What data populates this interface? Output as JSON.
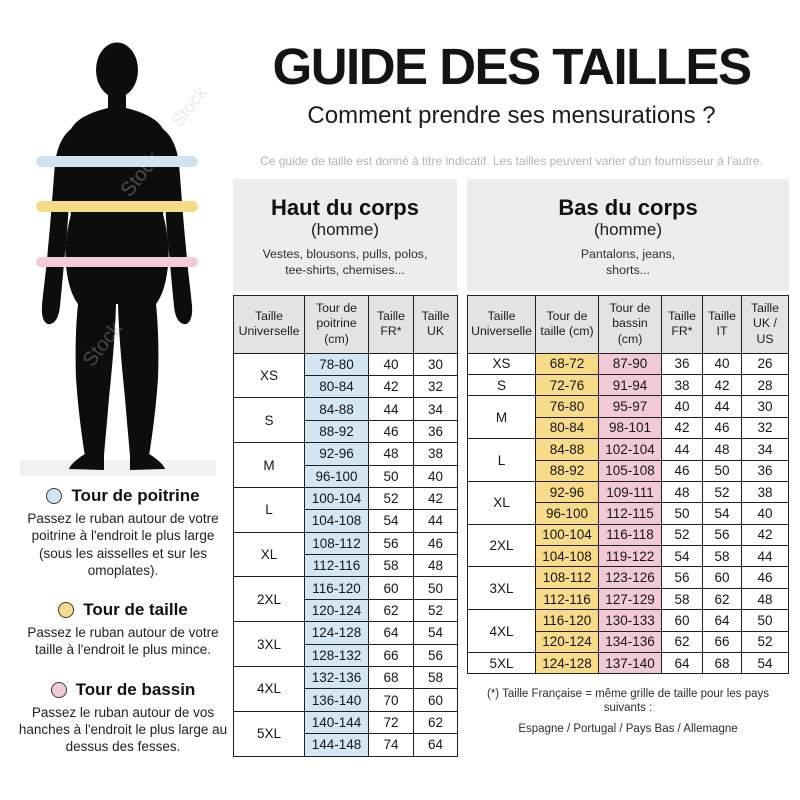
{
  "header": {
    "title": "GUIDE DES TAILLES",
    "subtitle": "Comment prendre ses mensurations ?",
    "disclaimer": "Ce guide de taille est donné à titre indicatif. Les tailles peuvent varier d'un fournisseur à l'autre."
  },
  "figure": {
    "watermark": "Stock",
    "silhouette_color": "#0d0d0d",
    "measurements": [
      {
        "id": "poitrine",
        "label": "Tour de poitrine",
        "color": "#d4e6f1",
        "band_color": "#cfe4f0",
        "description": "Passez le ruban autour de votre poitrine à l'endroit le plus large (sous les aisselles et sur les omoplates)."
      },
      {
        "id": "taille",
        "label": "Tour de taille",
        "color": "#f7db88",
        "band_color": "#f6db87",
        "description": "Passez le ruban autour de votre taille à l'endroit le plus mince."
      },
      {
        "id": "bassin",
        "label": "Tour de bassin",
        "color": "#f1cad5",
        "band_color": "#f1cbd6",
        "description": "Passez le ruban autour de vos hanches à l'endroit le plus large au dessus des fesses."
      }
    ]
  },
  "tables": {
    "haut": {
      "title": "Haut du corps",
      "subtitle": "(homme)",
      "items": "Vestes, blousons, pulls, polos,\ntee-shirts, chemises...",
      "columns": [
        "Taille Universelle",
        "Tour de poitrine (cm)",
        "Taille FR*",
        "Taille UK"
      ],
      "rows": [
        {
          "size": "XS",
          "data": [
            [
              "78-80",
              "40",
              "30"
            ],
            [
              "80-84",
              "42",
              "32"
            ]
          ]
        },
        {
          "size": "S",
          "data": [
            [
              "84-88",
              "44",
              "34"
            ],
            [
              "88-92",
              "46",
              "36"
            ]
          ]
        },
        {
          "size": "M",
          "data": [
            [
              "92-96",
              "48",
              "38"
            ],
            [
              "96-100",
              "50",
              "40"
            ]
          ]
        },
        {
          "size": "L",
          "data": [
            [
              "100-104",
              "52",
              "42"
            ],
            [
              "104-108",
              "54",
              "44"
            ]
          ]
        },
        {
          "size": "XL",
          "data": [
            [
              "108-112",
              "56",
              "46"
            ],
            [
              "112-116",
              "58",
              "48"
            ]
          ]
        },
        {
          "size": "2XL",
          "data": [
            [
              "116-120",
              "60",
              "50"
            ],
            [
              "120-124",
              "62",
              "52"
            ]
          ]
        },
        {
          "size": "3XL",
          "data": [
            [
              "124-128",
              "64",
              "54"
            ],
            [
              "128-132",
              "66",
              "56"
            ]
          ]
        },
        {
          "size": "4XL",
          "data": [
            [
              "132-136",
              "68",
              "58"
            ],
            [
              "136-140",
              "70",
              "60"
            ]
          ]
        },
        {
          "size": "5XL",
          "data": [
            [
              "140-144",
              "72",
              "62"
            ],
            [
              "144-148",
              "74",
              "64"
            ]
          ]
        }
      ]
    },
    "bas": {
      "title": "Bas du corps",
      "subtitle": "(homme)",
      "items": "Pantalons, jeans,\nshorts...",
      "columns": [
        "Taille Universelle",
        "Tour de taille (cm)",
        "Tour de bassin (cm)",
        "Taille FR*",
        "Taille IT",
        "Taille UK / US"
      ],
      "rows": [
        {
          "size": "XS",
          "data": [
            [
              "68-72",
              "87-90",
              "36",
              "40",
              "26"
            ]
          ]
        },
        {
          "size": "S",
          "data": [
            [
              "72-76",
              "91-94",
              "38",
              "42",
              "28"
            ]
          ]
        },
        {
          "size": "M",
          "data": [
            [
              "76-80",
              "95-97",
              "40",
              "44",
              "30"
            ],
            [
              "80-84",
              "98-101",
              "42",
              "46",
              "32"
            ]
          ]
        },
        {
          "size": "L",
          "data": [
            [
              "84-88",
              "102-104",
              "44",
              "48",
              "34"
            ],
            [
              "88-92",
              "105-108",
              "46",
              "50",
              "36"
            ]
          ]
        },
        {
          "size": "XL",
          "data": [
            [
              "92-96",
              "109-111",
              "48",
              "52",
              "38"
            ],
            [
              "96-100",
              "112-115",
              "50",
              "54",
              "40"
            ]
          ]
        },
        {
          "size": "2XL",
          "data": [
            [
              "100-104",
              "116-118",
              "52",
              "56",
              "42"
            ],
            [
              "104-108",
              "119-122",
              "54",
              "58",
              "44"
            ]
          ]
        },
        {
          "size": "3XL",
          "data": [
            [
              "108-112",
              "123-126",
              "56",
              "60",
              "46"
            ],
            [
              "112-116",
              "127-129",
              "58",
              "62",
              "48"
            ]
          ]
        },
        {
          "size": "4XL",
          "data": [
            [
              "116-120",
              "130-133",
              "60",
              "64",
              "50"
            ],
            [
              "120-124",
              "134-136",
              "62",
              "66",
              "52"
            ]
          ]
        },
        {
          "size": "5XL",
          "data": [
            [
              "124-128",
              "137-140",
              "64",
              "68",
              "54"
            ]
          ]
        }
      ]
    }
  },
  "footnote": {
    "line1": "(*) Taille Française = même grille de taille pour les pays suivants :",
    "line2": "Espagne / Portugal / Pays Bas / Allemagne"
  }
}
